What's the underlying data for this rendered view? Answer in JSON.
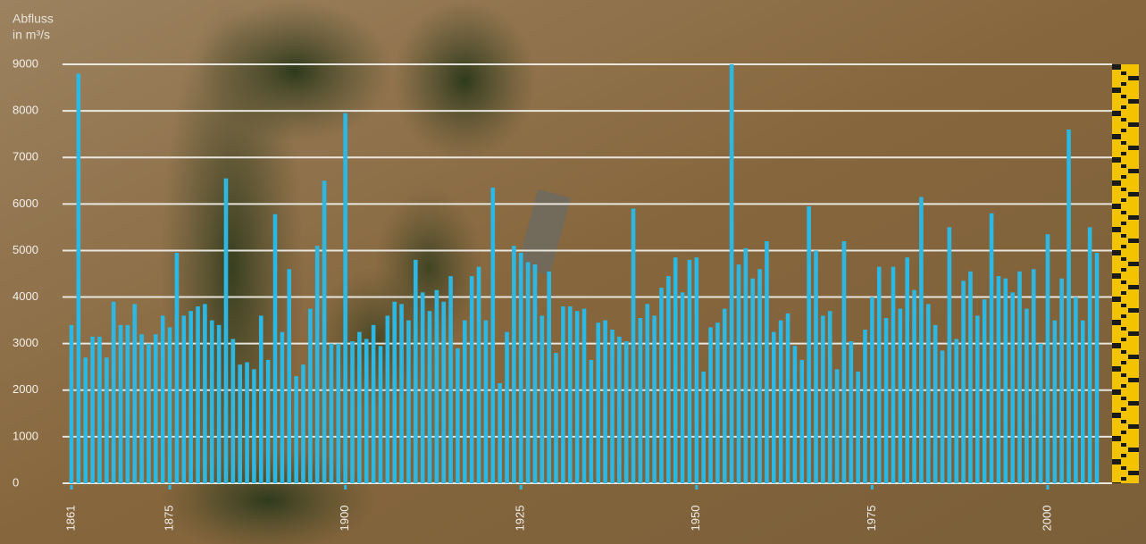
{
  "chart_data": {
    "type": "bar",
    "y_label_lines": [
      "Abfluss",
      "in m³/s"
    ],
    "x": [
      1861,
      1862,
      1863,
      1864,
      1865,
      1866,
      1867,
      1868,
      1869,
      1870,
      1871,
      1872,
      1873,
      1874,
      1875,
      1876,
      1877,
      1878,
      1879,
      1880,
      1881,
      1882,
      1883,
      1884,
      1885,
      1886,
      1887,
      1888,
      1889,
      1890,
      1891,
      1892,
      1893,
      1894,
      1895,
      1896,
      1897,
      1898,
      1899,
      1900,
      1901,
      1902,
      1903,
      1904,
      1905,
      1906,
      1907,
      1908,
      1909,
      1910,
      1911,
      1912,
      1913,
      1914,
      1915,
      1916,
      1917,
      1918,
      1919,
      1920,
      1921,
      1922,
      1923,
      1924,
      1925,
      1926,
      1927,
      1928,
      1929,
      1930,
      1931,
      1932,
      1933,
      1934,
      1935,
      1936,
      1937,
      1938,
      1939,
      1940,
      1941,
      1942,
      1943,
      1944,
      1945,
      1946,
      1947,
      1948,
      1949,
      1950,
      1951,
      1952,
      1953,
      1954,
      1955,
      1956,
      1957,
      1958,
      1959,
      1960,
      1961,
      1962,
      1963,
      1964,
      1965,
      1966,
      1967,
      1968,
      1969,
      1970,
      1971,
      1972,
      1973,
      1974,
      1975,
      1976,
      1977,
      1978,
      1979,
      1980,
      1981,
      1982,
      1983,
      1984,
      1985,
      1986,
      1987,
      1988,
      1989,
      1990,
      1991,
      1992,
      1993,
      1994,
      1995,
      1996,
      1997,
      1998,
      1999,
      2000,
      2001,
      2002,
      2003,
      2004,
      2005,
      2006,
      2007
    ],
    "values": [
      3400,
      8800,
      2700,
      3150,
      3150,
      2700,
      3900,
      3400,
      3400,
      3850,
      3200,
      3000,
      3200,
      3600,
      3350,
      4950,
      3600,
      3700,
      3800,
      3850,
      3500,
      3400,
      6550,
      3100,
      2550,
      2600,
      2450,
      3600,
      2650,
      5780,
      3250,
      4600,
      2300,
      2550,
      3750,
      5100,
      6500,
      3000,
      3000,
      7950,
      3050,
      3250,
      3100,
      3400,
      2950,
      3600,
      3900,
      3850,
      3500,
      4800,
      4100,
      3700,
      4150,
      3900,
      4450,
      2900,
      3500,
      4450,
      4650,
      3500,
      6350,
      2150,
      3250,
      5100,
      4950,
      4750,
      4700,
      3600,
      4550,
      2800,
      3800,
      3800,
      3700,
      3750,
      2650,
      3450,
      3500,
      3300,
      3150,
      3050,
      5900,
      3550,
      3850,
      3600,
      4200,
      4450,
      4850,
      4100,
      4800,
      4850,
      2400,
      3350,
      3450,
      3750,
      9000,
      4700,
      5050,
      4400,
      4600,
      5200,
      3250,
      3500,
      3650,
      2950,
      2650,
      5950,
      5000,
      3600,
      3700,
      2450,
      5200,
      3050,
      2400,
      3300,
      4000,
      4650,
      3550,
      4650,
      3750,
      4850,
      4150,
      6150,
      3850,
      3400,
      2850,
      5500,
      3100,
      4350,
      4550,
      3600,
      3950,
      5800,
      4450,
      4400,
      4100,
      4550,
      3750,
      4600,
      3000,
      5350,
      3500,
      4400,
      7600,
      4000,
      3500,
      5500,
      4950
    ],
    "color": "#2cb8e2",
    "xlim": [
      1861,
      2007
    ],
    "xticks": [
      1861,
      1875,
      1900,
      1925,
      1950,
      1975,
      2000
    ],
    "ylim": [
      0,
      9000
    ],
    "yticks": [
      0,
      1000,
      2000,
      3000,
      4000,
      5000,
      6000,
      7000,
      8000,
      9000
    ],
    "grid": true
  }
}
